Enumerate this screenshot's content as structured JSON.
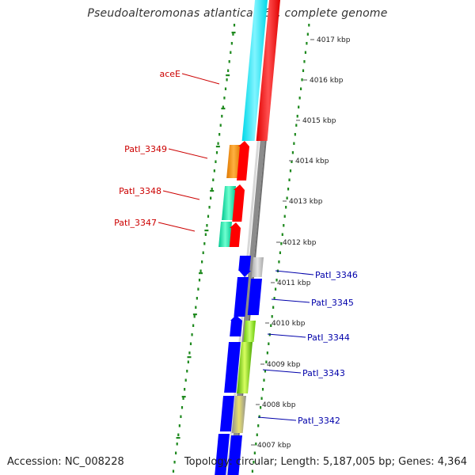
{
  "title": "Pseudoalteromonas atlantica T6c, complete genome",
  "footer": {
    "accession": "Accession: NC_008228",
    "topology": "Topology: circular; Length: 5,187,005 bp; Genes: 4,364"
  },
  "colors": {
    "backbone": "#9a9a9a",
    "gc_ticks": "#1f8a1f",
    "left_labels": "#cc0000",
    "right_labels": "#0000aa",
    "forward_cds": "#ff0000",
    "reverse_cds": "#0000ff"
  },
  "scale_labels": [
    "4017 kbp",
    "4016 kbp",
    "4015 kbp",
    "4014 kbp",
    "4013 kbp",
    "4012 kbp",
    "4011 kbp",
    "4010 kbp",
    "4009 kbp",
    "4008 kbp",
    "4007 kbp"
  ],
  "left_genes": [
    "aceE",
    "PatI_3349",
    "PatI_3348",
    "PatI_3347"
  ],
  "right_genes": [
    "PatI_3346",
    "PatI_3345",
    "PatI_3344",
    "PatI_3343",
    "PatI_3342"
  ]
}
